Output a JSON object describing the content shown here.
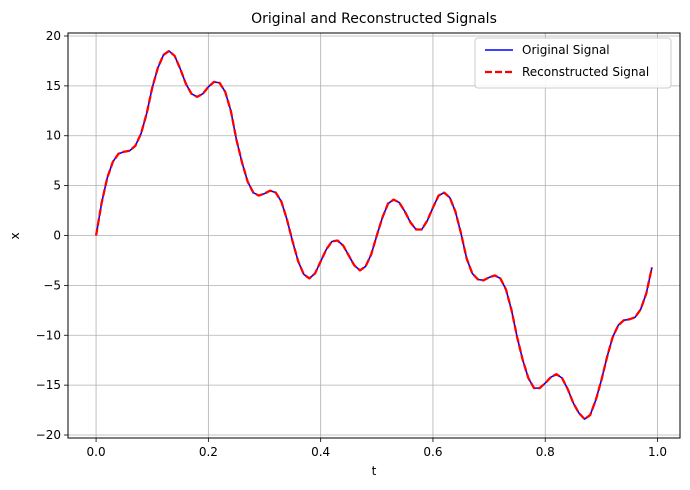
{
  "chart_data": {
    "type": "line",
    "title": "Original and Reconstructed Signals",
    "xlabel": "t",
    "ylabel": "x",
    "xlim": [
      -0.05,
      1.04
    ],
    "ylim": [
      -20.3,
      20.3
    ],
    "x_ticks": [
      0.0,
      0.2,
      0.4,
      0.6,
      0.8,
      1.0
    ],
    "x_tick_labels": [
      "0.0",
      "0.2",
      "0.4",
      "0.6",
      "0.8",
      "1.0"
    ],
    "y_ticks": [
      20,
      15,
      10,
      5,
      0,
      -5,
      -10,
      -15,
      -20
    ],
    "y_tick_labels": [
      "20",
      "15",
      "10",
      "5",
      "0",
      "−5",
      "−10",
      "−15",
      "−20"
    ],
    "grid": true,
    "legend_position": "top-right",
    "x": [
      0.0,
      0.01,
      0.02,
      0.03,
      0.04,
      0.05,
      0.06,
      0.07,
      0.08,
      0.09,
      0.1,
      0.11,
      0.12,
      0.13,
      0.14,
      0.15,
      0.16,
      0.17,
      0.18,
      0.19,
      0.2,
      0.21,
      0.22,
      0.23,
      0.24,
      0.25,
      0.26,
      0.27,
      0.28,
      0.29,
      0.3,
      0.31,
      0.32,
      0.33,
      0.34,
      0.35,
      0.36,
      0.37,
      0.38,
      0.39,
      0.4,
      0.41,
      0.42,
      0.43,
      0.44,
      0.45,
      0.46,
      0.47,
      0.48,
      0.49,
      0.5,
      0.51,
      0.52,
      0.53,
      0.54,
      0.55,
      0.56,
      0.57,
      0.58,
      0.59,
      0.6,
      0.61,
      0.62,
      0.63,
      0.64,
      0.65,
      0.66,
      0.67,
      0.68,
      0.69,
      0.7,
      0.71,
      0.72,
      0.73,
      0.74,
      0.75,
      0.76,
      0.77,
      0.78,
      0.79,
      0.8,
      0.81,
      0.82,
      0.83,
      0.84,
      0.85,
      0.86,
      0.87,
      0.88,
      0.89,
      0.9,
      0.91,
      0.92,
      0.93,
      0.94,
      0.95,
      0.96,
      0.97,
      0.98,
      0.99
    ],
    "series": [
      {
        "name": "Original Signal",
        "color": "#0000ff",
        "style": "solid",
        "values": [
          0.0,
          3.3,
          5.8,
          7.4,
          8.2,
          8.4,
          8.5,
          9.0,
          10.2,
          12.2,
          14.8,
          16.8,
          18.1,
          18.5,
          18.0,
          16.7,
          15.2,
          14.2,
          13.9,
          14.2,
          14.9,
          15.4,
          15.3,
          14.4,
          12.5,
          9.6,
          7.3,
          5.4,
          4.3,
          4.0,
          4.2,
          4.5,
          4.3,
          3.4,
          1.6,
          -0.6,
          -2.6,
          -3.9,
          -4.3,
          -3.8,
          -2.6,
          -1.4,
          -0.6,
          -0.5,
          -1.0,
          -2.0,
          -3.0,
          -3.5,
          -3.1,
          -1.9,
          0.0,
          1.8,
          3.2,
          3.6,
          3.3,
          2.4,
          1.3,
          0.6,
          0.6,
          1.5,
          2.8,
          4.0,
          4.3,
          3.8,
          2.4,
          0.2,
          -2.3,
          -3.8,
          -4.4,
          -4.5,
          -4.2,
          -4.0,
          -4.3,
          -5.4,
          -7.5,
          -10.2,
          -12.5,
          -14.3,
          -15.3,
          -15.3,
          -14.8,
          -14.2,
          -13.9,
          -14.3,
          -15.4,
          -16.8,
          -17.8,
          -18.4,
          -18.0,
          -16.5,
          -14.5,
          -12.2,
          -10.2,
          -9.0,
          -8.5,
          -8.4,
          -8.2,
          -7.4,
          -5.8,
          -3.2
        ]
      },
      {
        "name": "Reconstructed Signal",
        "color": "#ff0000",
        "style": "dashed",
        "values": [
          0.0,
          3.3,
          5.8,
          7.4,
          8.2,
          8.4,
          8.5,
          9.0,
          10.2,
          12.2,
          14.8,
          16.8,
          18.1,
          18.5,
          18.0,
          16.7,
          15.2,
          14.2,
          13.9,
          14.2,
          14.9,
          15.4,
          15.3,
          14.4,
          12.5,
          9.6,
          7.3,
          5.4,
          4.3,
          4.0,
          4.2,
          4.5,
          4.3,
          3.4,
          1.6,
          -0.6,
          -2.6,
          -3.9,
          -4.3,
          -3.8,
          -2.6,
          -1.4,
          -0.6,
          -0.5,
          -1.0,
          -2.0,
          -3.0,
          -3.5,
          -3.1,
          -1.9,
          0.0,
          1.8,
          3.2,
          3.6,
          3.3,
          2.4,
          1.3,
          0.6,
          0.6,
          1.5,
          2.8,
          4.0,
          4.3,
          3.8,
          2.4,
          0.2,
          -2.3,
          -3.8,
          -4.4,
          -4.5,
          -4.2,
          -4.0,
          -4.3,
          -5.4,
          -7.5,
          -10.2,
          -12.5,
          -14.3,
          -15.3,
          -15.3,
          -14.8,
          -14.2,
          -13.9,
          -14.3,
          -15.4,
          -16.8,
          -17.8,
          -18.4,
          -18.0,
          -16.5,
          -14.5,
          -12.2,
          -10.2,
          -9.0,
          -8.5,
          -8.4,
          -8.2,
          -7.4,
          -5.8,
          -3.2
        ]
      }
    ]
  }
}
